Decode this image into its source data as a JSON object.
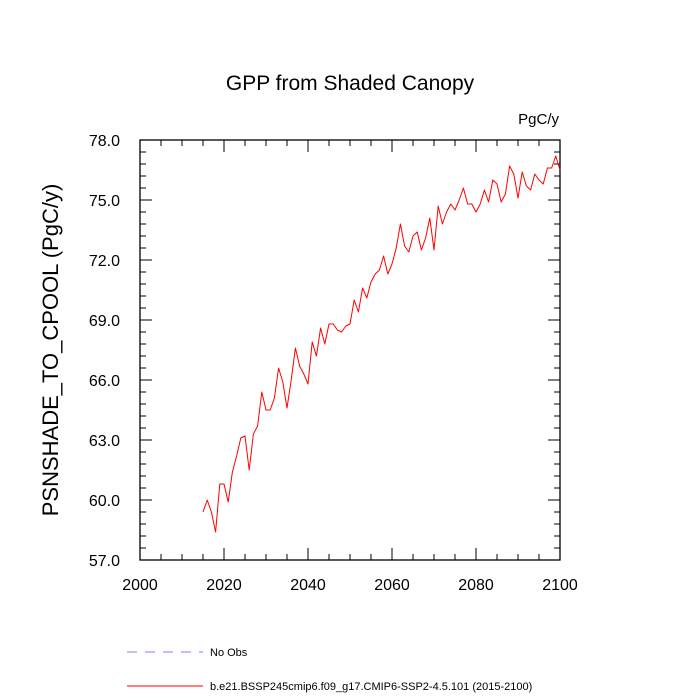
{
  "chart_data": {
    "type": "line",
    "title": "GPP from Shaded Canopy",
    "units_label": "PgC/y",
    "ylabel": "PSNSHADE_TO_CPOOL  (PgC/y)",
    "xlabel": "",
    "xlim": [
      2000,
      2100
    ],
    "ylim": [
      57.0,
      78.0
    ],
    "xticks": [
      2000,
      2020,
      2040,
      2060,
      2080,
      2100
    ],
    "xtick_labels": [
      "2000",
      "2020",
      "2040",
      "2060",
      "2080",
      "2100"
    ],
    "yticks": [
      57.0,
      60.0,
      63.0,
      66.0,
      69.0,
      72.0,
      75.0,
      78.0
    ],
    "ytick_labels": [
      "57.0",
      "60.0",
      "63.0",
      "66.0",
      "69.0",
      "72.0",
      "75.0",
      "78.0"
    ],
    "grid": false,
    "legend_position": "bottom-left",
    "series": [
      {
        "name": "b.e21.BSSP245cmip6.f09_g17.CMIP6-SSP2-4.5.101 (2015-2100)",
        "color": "#ff0000",
        "style": "solid",
        "x": [
          2015,
          2016,
          2017,
          2018,
          2019,
          2020,
          2021,
          2022,
          2023,
          2024,
          2025,
          2026,
          2027,
          2028,
          2029,
          2030,
          2031,
          2032,
          2033,
          2034,
          2035,
          2036,
          2037,
          2038,
          2039,
          2040,
          2041,
          2042,
          2043,
          2044,
          2045,
          2046,
          2047,
          2048,
          2049,
          2050,
          2051,
          2052,
          2053,
          2054,
          2055,
          2056,
          2057,
          2058,
          2059,
          2060,
          2061,
          2062,
          2063,
          2064,
          2065,
          2066,
          2067,
          2068,
          2069,
          2070,
          2071,
          2072,
          2073,
          2074,
          2075,
          2076,
          2077,
          2078,
          2079,
          2080,
          2081,
          2082,
          2083,
          2084,
          2085,
          2086,
          2087,
          2088,
          2089,
          2090,
          2091,
          2092,
          2093,
          2094,
          2095,
          2096,
          2097,
          2098,
          2099,
          2100
        ],
        "y": [
          59.4,
          60.0,
          59.4,
          58.4,
          60.8,
          60.8,
          59.9,
          61.4,
          62.2,
          63.1,
          63.2,
          61.5,
          63.3,
          63.7,
          65.4,
          64.5,
          64.5,
          65.1,
          66.6,
          65.9,
          64.6,
          66.0,
          67.6,
          66.7,
          66.3,
          65.8,
          67.9,
          67.2,
          68.6,
          67.8,
          68.8,
          68.8,
          68.5,
          68.4,
          68.7,
          68.8,
          70.0,
          69.4,
          70.6,
          70.1,
          70.9,
          71.3,
          71.5,
          72.2,
          71.3,
          71.8,
          72.6,
          73.8,
          72.7,
          72.4,
          73.2,
          73.4,
          72.5,
          73.1,
          74.1,
          72.5,
          74.7,
          73.8,
          74.4,
          74.8,
          74.5,
          75.0,
          75.6,
          74.8,
          74.8,
          74.4,
          74.8,
          75.5,
          74.9,
          76.0,
          75.8,
          74.9,
          75.3,
          76.7,
          76.3,
          75.1,
          76.4,
          75.7,
          75.5,
          76.3,
          76.0,
          75.8,
          76.6,
          76.6,
          77.2,
          76.5
        ]
      },
      {
        "name": "No Obs",
        "color": "#8080ff",
        "style": "dashed",
        "x": [],
        "y": []
      }
    ]
  }
}
